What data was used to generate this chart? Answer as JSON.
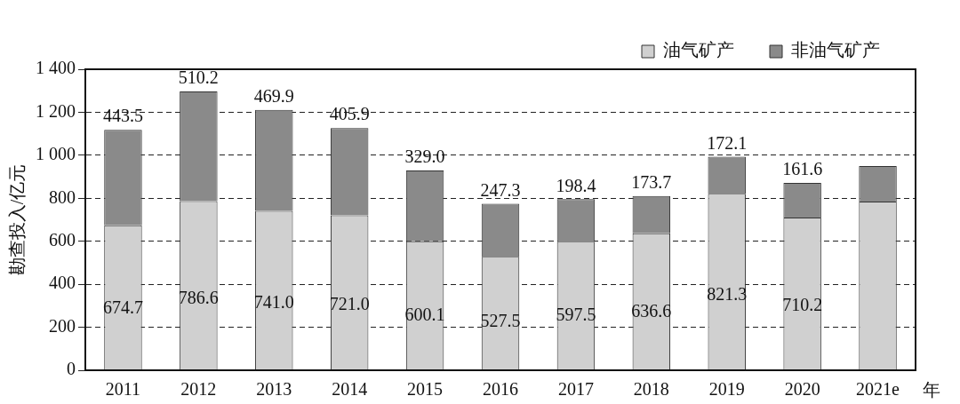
{
  "chart_data": {
    "type": "bar",
    "stacked": true,
    "ylabel": "勘查投入/亿元",
    "xlabel": "年",
    "categories": [
      "2011",
      "2012",
      "2013",
      "2014",
      "2015",
      "2016",
      "2017",
      "2018",
      "2019",
      "2020",
      "2021e"
    ],
    "series": [
      {
        "name": "油气矿产",
        "color": "#d0d0d0",
        "values": [
          674.7,
          786.6,
          741.0,
          721.0,
          600.1,
          527.5,
          597.5,
          636.6,
          821.3,
          710.2,
          785
        ],
        "value_labels": [
          "674.7",
          "786.6",
          "741.0",
          "721.0",
          "600.1",
          "527.5",
          "597.5",
          "636.6",
          "821.3",
          "710.2",
          null
        ]
      },
      {
        "name": "非油气矿产",
        "color": "#8a8a8a",
        "values": [
          443.5,
          510.2,
          469.9,
          405.9,
          329.0,
          247.3,
          198.4,
          173.7,
          172.1,
          161.6,
          165
        ],
        "value_labels": [
          "443.5",
          "510.2",
          "469.9",
          "405.9",
          "329.0",
          "247.3",
          "198.4",
          "173.7",
          "172.1",
          "161.6",
          null
        ]
      }
    ],
    "ylim": [
      0,
      1400
    ],
    "yticks": [
      0,
      200,
      400,
      600,
      800,
      {
        "value": 1000,
        "label": "1 000"
      },
      {
        "value": 1200,
        "label": "1 200"
      },
      {
        "value": 1400,
        "label": "1 400"
      }
    ],
    "grid": "y",
    "legend": "top right"
  }
}
